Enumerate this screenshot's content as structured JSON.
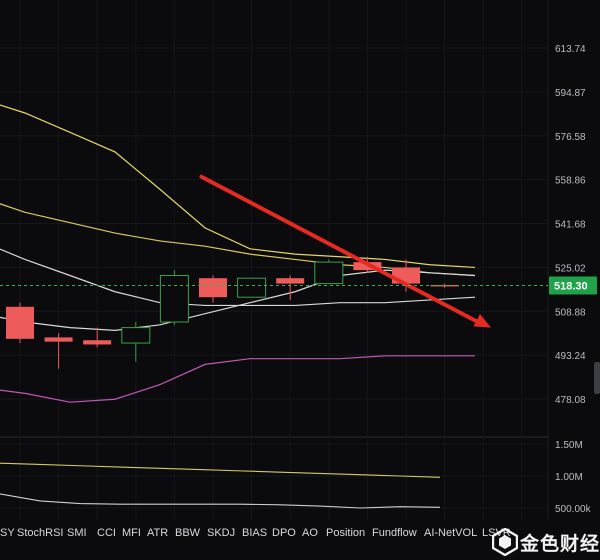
{
  "chart_data": {
    "type": "candlestick",
    "price_axis": [
      "613.74",
      "594.87",
      "576.58",
      "558.86",
      "541.68",
      "525.02",
      "508.88",
      "493.24",
      "478.08"
    ],
    "current_price": "518.30",
    "volume_axis": [
      "1.50M",
      "1.00M",
      "500.00k"
    ],
    "price_range": [
      470,
      622
    ],
    "volume_range": [
      330000,
      1650000
    ],
    "candles": [
      {
        "o": 510.5,
        "h": 512,
        "l": 497.5,
        "c": 499
      },
      {
        "o": 499.5,
        "h": 501,
        "l": 488.5,
        "c": 498
      },
      {
        "o": 498.5,
        "h": 503,
        "l": 496,
        "c": 497
      },
      {
        "o": 497.5,
        "h": 505,
        "l": 491,
        "c": 503
      },
      {
        "o": 505,
        "h": 524,
        "l": 504,
        "c": 522
      },
      {
        "o": 521,
        "h": 522,
        "l": 512,
        "c": 514
      },
      {
        "o": 514,
        "h": 521,
        "l": 514,
        "c": 521
      },
      {
        "o": 521,
        "h": 522,
        "l": 513,
        "c": 519
      },
      {
        "o": 519,
        "h": 528,
        "l": 519,
        "c": 527
      },
      {
        "o": 527,
        "h": 529,
        "l": 523,
        "c": 524
      },
      {
        "o": 525,
        "h": 528,
        "l": 516,
        "c": 519
      },
      {
        "o": 518.5,
        "h": 519,
        "l": 517.5,
        "c": 518.3
      }
    ],
    "upper_band": [
      592,
      586,
      578,
      570,
      555,
      540,
      532,
      530,
      529,
      528,
      526,
      525
    ],
    "ma_band": [
      552,
      546,
      542,
      538,
      535,
      533,
      530,
      528,
      526,
      525,
      523,
      522
    ],
    "middle_line": [
      535,
      528,
      522,
      516,
      512,
      511,
      511,
      511,
      512,
      512,
      513,
      514
    ],
    "lower_mid_line": [
      508,
      505,
      503,
      502,
      504,
      508,
      512,
      516,
      522,
      524,
      523,
      522
    ],
    "lower_band": [
      482,
      480,
      477,
      478,
      483,
      490,
      492,
      492,
      492,
      493,
      493,
      493
    ],
    "volume_line_a": [
      1200000,
      1180000,
      1160000,
      1140000,
      1120000,
      1100000,
      1080000,
      1060000,
      1040000,
      1020000,
      1000000,
      980000
    ],
    "volume_line_b": [
      720000,
      610000,
      570000,
      560000,
      560000,
      560000,
      560000,
      550000,
      530000,
      500000,
      520000,
      510000
    ],
    "trend_arrow": {
      "from": [
        4.7,
        560
      ],
      "to": [
        12.2,
        503
      ]
    }
  },
  "indicator_tabs": [
    "SY",
    "StochRSI",
    "SMI",
    "CCI",
    "MFI",
    "ATR",
    "BBW",
    "SKDJ",
    "BIAS",
    "DPO",
    "AO",
    "Position",
    "Fundflow",
    "AI-NetVOL",
    "LSVR"
  ],
  "watermark": {
    "text": "金色财经"
  },
  "colors": {
    "up": "#3aa04c",
    "down": "#ee5b5b",
    "upper_band": "#e8d76a",
    "ma": "#d9c862",
    "white_line": "#d8d8d8",
    "lower_band": "#c257b8",
    "arrow": "#e52a22",
    "vol_a": "#d6c96a",
    "vol_b": "#cfcfcf"
  }
}
